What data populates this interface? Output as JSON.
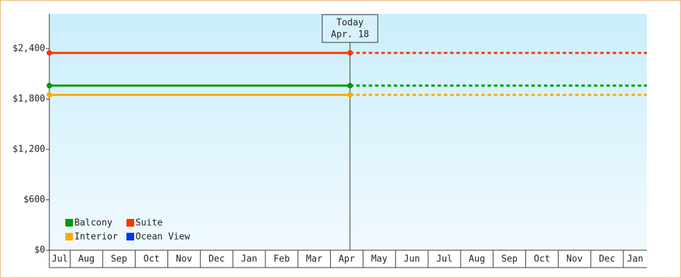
{
  "chart_data": {
    "type": "line",
    "annotation": [
      "Today",
      "Apr. 18"
    ],
    "categories": [
      "Jul",
      "Aug",
      "Sep",
      "Oct",
      "Nov",
      "Dec",
      "Jan",
      "Feb",
      "Mar",
      "Apr",
      "May",
      "Jun",
      "Jul",
      "Aug",
      "Sep",
      "Oct",
      "Nov",
      "Dec",
      "Jan"
    ],
    "series": [
      {
        "name": "Balcony",
        "color": "#009900",
        "value": 1960
      },
      {
        "name": "Suite",
        "color": "#ff3300",
        "value": 2350
      },
      {
        "name": "Interior",
        "color": "#ffaa00",
        "value": 1850
      },
      {
        "name": "Ocean View",
        "color": "#0033ff",
        "value": null
      }
    ],
    "ylim": [
      0,
      2814
    ],
    "yticks": [
      {
        "value": 0,
        "label": "$0"
      },
      {
        "value": 600,
        "label": "$600"
      },
      {
        "value": 1200,
        "label": "$1,200"
      },
      {
        "value": 1800,
        "label": "$1,800"
      },
      {
        "value": 2400,
        "label": "$2,400"
      }
    ]
  }
}
